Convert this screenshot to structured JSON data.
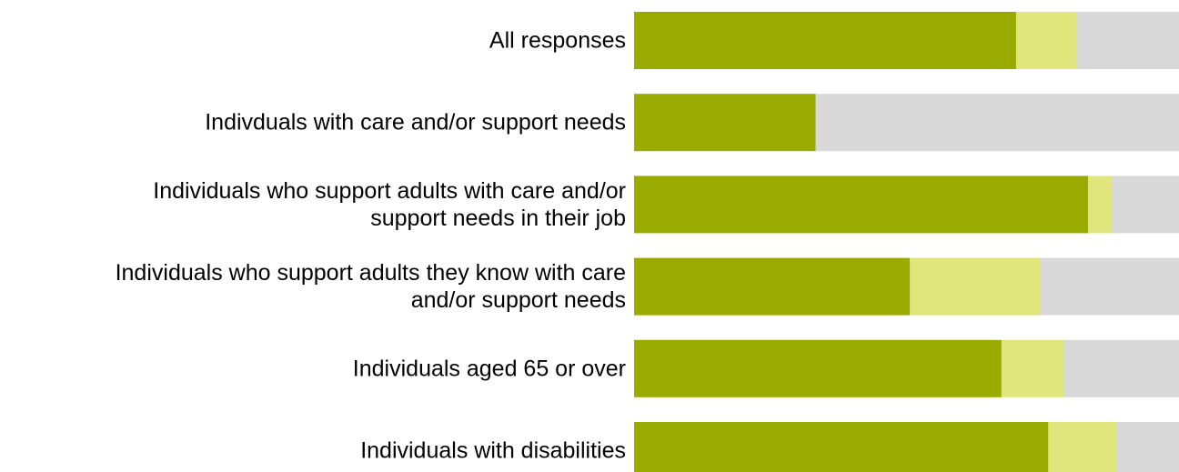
{
  "chart_data": {
    "type": "bar",
    "orientation": "horizontal",
    "stacked": true,
    "normalized": true,
    "title": "",
    "xlabel": "",
    "ylabel": "",
    "xlim": [
      0,
      100
    ],
    "grid": false,
    "legend": "none",
    "categories": [
      "All responses",
      "Indivduals with care and/or support needs",
      "Individuals who support adults with care and/or support needs in their job",
      "Individuals who support adults they know with care and/or support needs",
      "Individuals aged 65 or over",
      "Individuals with disabilities"
    ],
    "category_lines": [
      [
        "All responses"
      ],
      [
        "Indivduals with care and/or support needs"
      ],
      [
        "Individuals who support adults with care and/or",
        "support needs in their job"
      ],
      [
        "Individuals who support adults they know with care",
        "and/or support needs"
      ],
      [
        "Individuals aged 65 or over"
      ],
      [
        "Individuals with disabilities"
      ]
    ],
    "series": [
      {
        "values": [
          70.1,
          33.3,
          83.3,
          50.6,
          67.4,
          76.0
        ],
        "color": "#9aab00"
      },
      {
        "values": [
          11.2,
          0.0,
          4.4,
          23.9,
          11.4,
          12.6
        ],
        "color": "#e1e67c"
      },
      {
        "values": [
          18.7,
          66.7,
          12.3,
          25.5,
          21.2,
          11.4
        ],
        "color": "#d9d9d9"
      }
    ]
  }
}
